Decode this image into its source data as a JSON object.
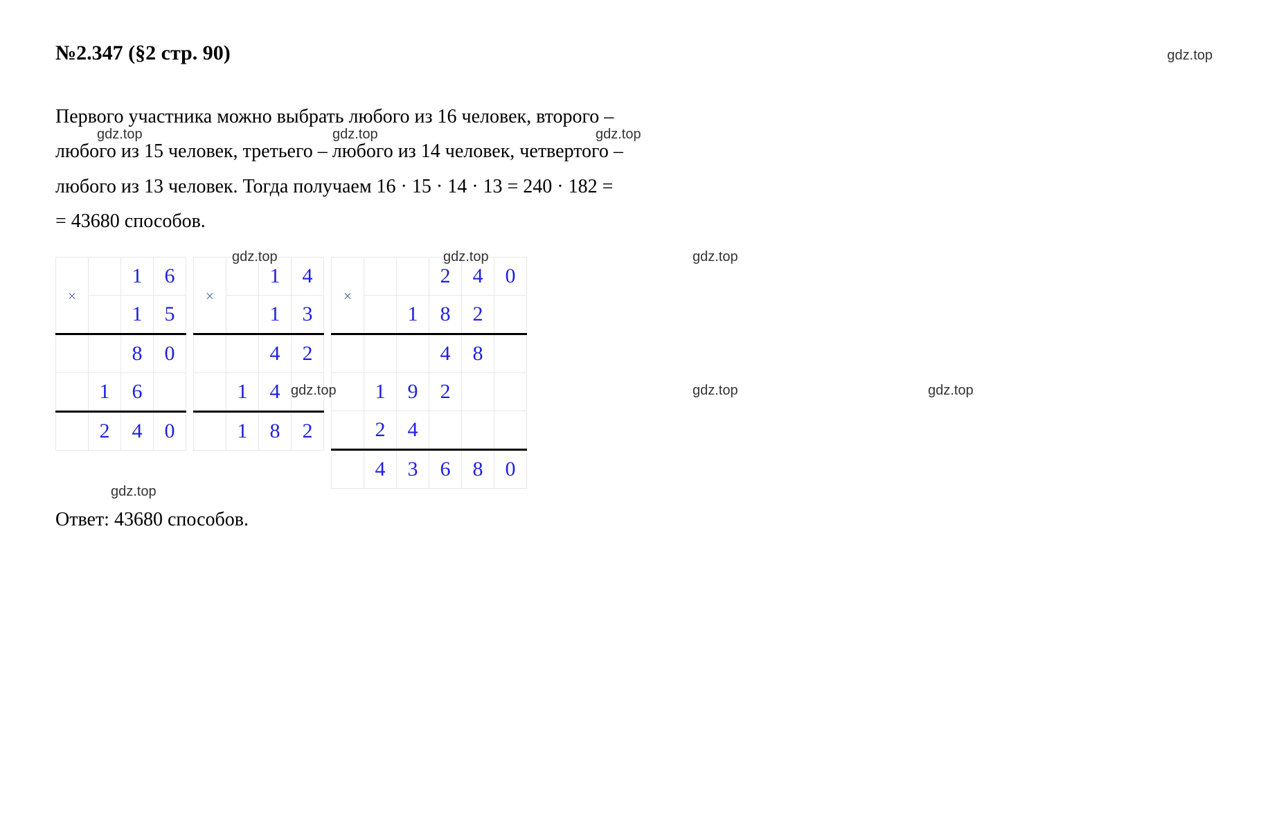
{
  "header": {
    "title": "№2.347 (§2 стр. 90)",
    "watermark": "gdz.top"
  },
  "paragraph": {
    "line1_a": "Первого участника можно выбрать любого из 16 человек, второго –",
    "line2_a": "любого из 15 человек, третьего – любого из 14 человек, четвертого –",
    "line3_a": "любого из 13 человек. Тогда получаем 16 · 15 · 14 · 13 = 240 · 182 =",
    "line4_a": "= 43680 способов."
  },
  "watermarks": {
    "wm": "gdz.top"
  },
  "tables": {
    "t1": {
      "rows": [
        [
          "×",
          "",
          "1",
          "6"
        ],
        [
          "",
          "",
          "1",
          "5"
        ],
        [
          "",
          "",
          "8",
          "0"
        ],
        [
          "",
          "1",
          "6",
          ""
        ],
        [
          "",
          "2",
          "4",
          "0"
        ]
      ],
      "hlines": [
        2,
        4
      ],
      "op_rowspan_start": 0,
      "op_rowspan": 2
    },
    "t2": {
      "rows": [
        [
          "×",
          "",
          "1",
          "4"
        ],
        [
          "",
          "",
          "1",
          "3"
        ],
        [
          "",
          "",
          "4",
          "2"
        ],
        [
          "",
          "1",
          "4",
          ""
        ],
        [
          "",
          "1",
          "8",
          "2"
        ]
      ],
      "hlines": [
        2,
        4
      ],
      "op_rowspan_start": 0,
      "op_rowspan": 2
    },
    "t3": {
      "rows": [
        [
          "×",
          "",
          "",
          "2",
          "4",
          "0"
        ],
        [
          "",
          "",
          "1",
          "8",
          "2",
          ""
        ],
        [
          "",
          "",
          "",
          "4",
          "8",
          ""
        ],
        [
          "",
          "1",
          "9",
          "2",
          "",
          ""
        ],
        [
          "",
          "2",
          "4",
          "",
          "",
          ""
        ],
        [
          "",
          "4",
          "3",
          "6",
          "8",
          "0"
        ]
      ],
      "hlines": [
        2,
        5
      ],
      "op_rowspan_start": 0,
      "op_rowspan": 2
    }
  },
  "answer": "Ответ: 43680 способов.",
  "colors": {
    "digit": "#2020dd",
    "op": "#5a6aa8",
    "border": "#e8e8e8",
    "text": "#000000",
    "bg": "#ffffff"
  }
}
